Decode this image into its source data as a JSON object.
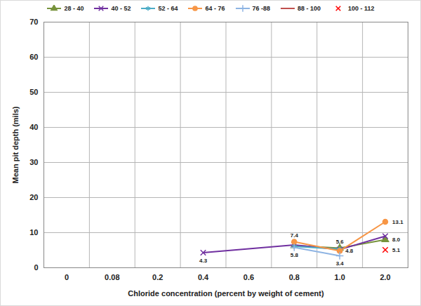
{
  "chart_data": {
    "type": "line",
    "x_label": "Chloride concentration (percent by weight of cement)",
    "y_label": "Mean pit depth (mils)",
    "categories": [
      "0",
      "0.08",
      "0.2",
      "0.4",
      "0.6",
      "0.8",
      "1.0",
      "2.0"
    ],
    "ylim": [
      0,
      70
    ],
    "yticks": [
      0,
      10,
      20,
      30,
      40,
      50,
      60,
      70
    ],
    "grid": true,
    "legend": "top",
    "data_labels": true,
    "series": [
      {
        "name": "28 - 40",
        "color": "#77933C",
        "marker": "triangle",
        "line_style": "solid",
        "values": [
          null,
          null,
          null,
          null,
          null,
          6.3,
          5.6,
          8.0
        ],
        "value_labels": [
          null,
          null,
          null,
          null,
          null,
          null,
          "5.6",
          "8.0"
        ]
      },
      {
        "name": "40 - 52",
        "color": "#7030A0",
        "marker": "times",
        "line_style": "solid",
        "values": [
          null,
          null,
          null,
          4.3,
          null,
          6.5,
          5.2,
          9.0
        ],
        "value_labels": [
          null,
          null,
          null,
          "4.3",
          null,
          null,
          null,
          null
        ]
      },
      {
        "name": "52 - 64",
        "color": "#4BACC6",
        "marker": "asterisk",
        "line_style": "solid",
        "values": [
          null,
          null,
          null,
          null,
          null,
          6.1,
          5.3,
          null
        ],
        "value_labels": [
          null,
          null,
          null,
          null,
          null,
          null,
          null,
          null
        ]
      },
      {
        "name": "64 - 76",
        "color": "#F79646",
        "marker": "circle",
        "line_style": "solid",
        "values": [
          null,
          null,
          null,
          null,
          null,
          7.4,
          4.8,
          13.1
        ],
        "value_labels": [
          null,
          null,
          null,
          null,
          null,
          "7.4",
          "4.8",
          "13.1"
        ]
      },
      {
        "name": "76 -88",
        "color": "#8EB4E3",
        "marker": "plus",
        "line_style": "solid",
        "values": [
          null,
          null,
          null,
          null,
          null,
          5.8,
          3.4,
          null
        ],
        "value_labels": [
          null,
          null,
          null,
          null,
          null,
          "5.8",
          "3.4",
          null
        ]
      },
      {
        "name": "88 - 100",
        "color": "#C0504D",
        "marker": "none",
        "line_style": "solid",
        "values": [
          null,
          null,
          null,
          null,
          null,
          null,
          null,
          null
        ],
        "value_labels": [
          null,
          null,
          null,
          null,
          null,
          null,
          null,
          null
        ]
      },
      {
        "name": "100 - 112",
        "color": "#FF0000",
        "marker": "times",
        "line_style": "none",
        "values": [
          null,
          null,
          null,
          null,
          null,
          null,
          null,
          5.1
        ],
        "value_labels": [
          null,
          null,
          null,
          null,
          null,
          null,
          null,
          "5.1"
        ]
      }
    ]
  }
}
